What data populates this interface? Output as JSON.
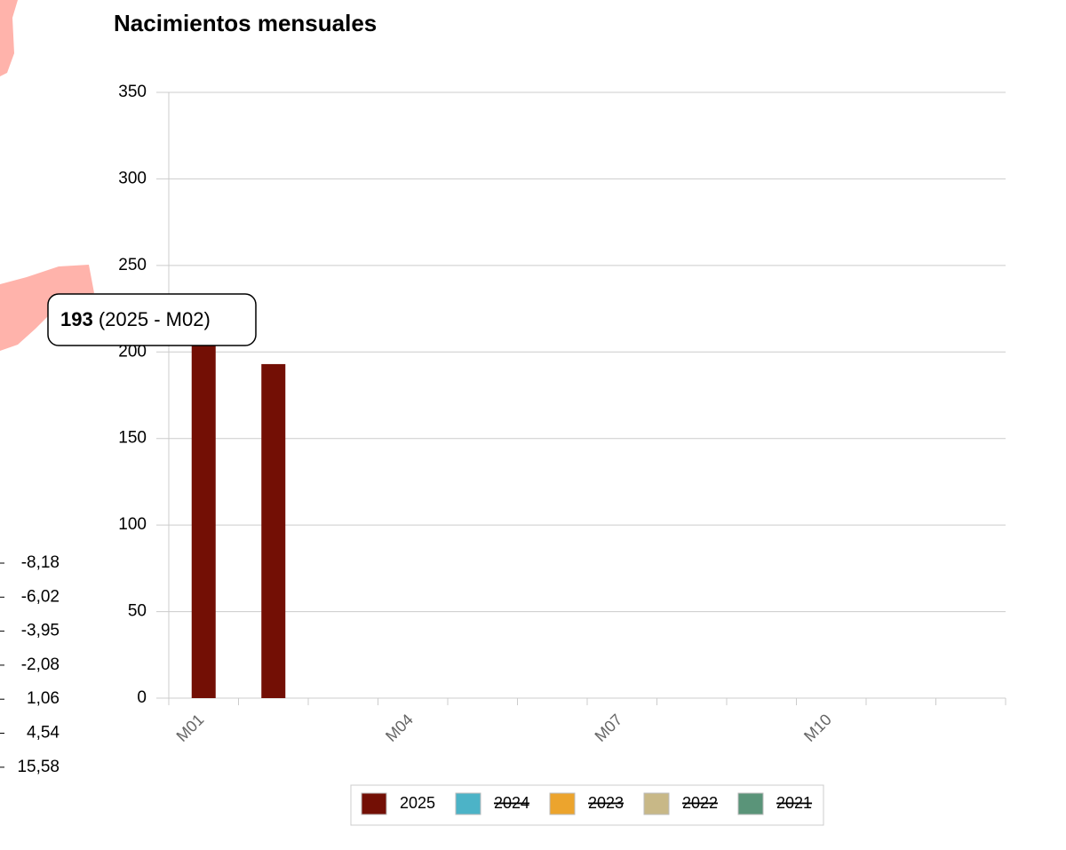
{
  "chart_data": {
    "type": "bar",
    "title": "Nacimientos mensuales",
    "categories": [
      "M01",
      null,
      null,
      "M04",
      null,
      null,
      "M07",
      null,
      null,
      "M10",
      null,
      null
    ],
    "series": [
      {
        "name": "2025",
        "color": "#730f05",
        "visible": true,
        "values": [
          206,
          193,
          null,
          null,
          null,
          null,
          null,
          null,
          null,
          null,
          null,
          null
        ]
      },
      {
        "name": "2024",
        "color": "#4cb3c7",
        "visible": false,
        "values": [
          null,
          null,
          null,
          null,
          null,
          null,
          null,
          null,
          null,
          null,
          null,
          null
        ]
      },
      {
        "name": "2023",
        "color": "#eca42d",
        "visible": false,
        "values": [
          null,
          null,
          null,
          null,
          null,
          null,
          null,
          null,
          null,
          null,
          null,
          null
        ]
      },
      {
        "name": "2022",
        "color": "#c8b887",
        "visible": false,
        "values": [
          null,
          null,
          null,
          null,
          null,
          null,
          null,
          null,
          null,
          null,
          null,
          null
        ]
      },
      {
        "name": "2021",
        "color": "#5a9479",
        "visible": false,
        "values": [
          null,
          null,
          null,
          null,
          null,
          null,
          null,
          null,
          null,
          null,
          null,
          null
        ]
      }
    ],
    "ylim": [
      0,
      350
    ],
    "yticks": [
      0,
      50,
      100,
      150,
      200,
      250,
      300,
      350
    ],
    "grid": true,
    "tooltip": {
      "value": 193,
      "label": "(2025 - M02)"
    }
  },
  "map_legend": [
    {
      "value": -8.18,
      "label": "-8,18"
    },
    {
      "value": -6.02,
      "label": "-6,02"
    },
    {
      "value": -3.95,
      "label": "-3,95"
    },
    {
      "value": -2.08,
      "label": "-2,08"
    },
    {
      "value": 1.06,
      "label": "1,06"
    },
    {
      "value": 4.54,
      "label": "4,54"
    },
    {
      "value": 15.58,
      "label": "15,58"
    }
  ]
}
